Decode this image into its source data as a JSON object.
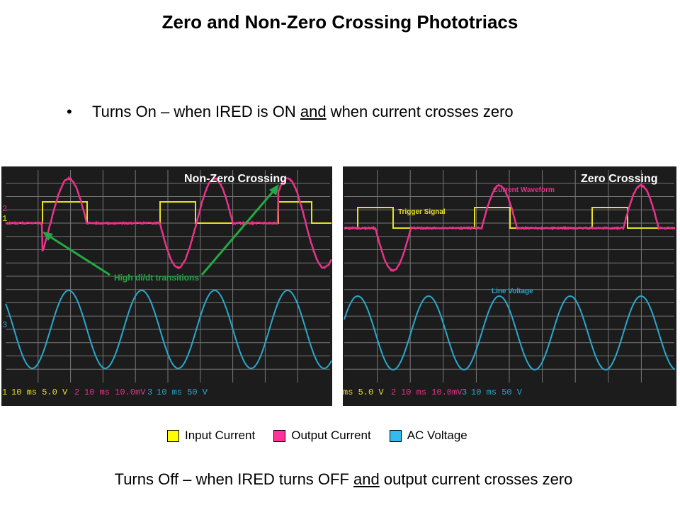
{
  "title": "Zero and Non-Zero Crossing Phototriacs",
  "bullet": {
    "symbol": "•",
    "pre": "Turns On – when IRED is ON ",
    "emph": "and",
    "post": " when current crosses zero"
  },
  "footer": {
    "pre": "Turns Off – when IRED turns OFF ",
    "emph": "and",
    "post": " output current crosses zero"
  },
  "scopes": [
    {
      "label": "Non-Zero Crossing",
      "annotation": "High di/dt transitions",
      "readout": {
        "ch1_num": "1",
        "ch1": "10 ms 5.0 V",
        "ch2_num": "2",
        "ch2": "10 ms 10.0mV",
        "ch3_num": "3",
        "ch3": "10 ms 50 V"
      },
      "channel_markers": [
        "2",
        "1",
        "3"
      ]
    },
    {
      "label": "Zero Crossing",
      "trigger_label": "Trigger Signal",
      "current_label": "Current Waveform",
      "voltage_label": "Line Voltage",
      "readout": {
        "ch1": "ms 5.0 V",
        "ch2_num": "2",
        "ch2": "10 ms 10.0mV",
        "ch3_num": "3",
        "ch3": "10 ms 50 V"
      }
    }
  ],
  "legend": [
    {
      "label": "Input Current",
      "color": "#ffff00"
    },
    {
      "label": "Output Current",
      "color": "#ff3399"
    },
    {
      "label": "AC Voltage",
      "color": "#33bbee"
    }
  ],
  "colors": {
    "yellow": "#e8e020",
    "magenta": "#e8338a",
    "cyan": "#2aa8cc",
    "annotation": "#22aa44",
    "scope_bg": "#1c1c1c",
    "grid": "#8a8a8a"
  }
}
